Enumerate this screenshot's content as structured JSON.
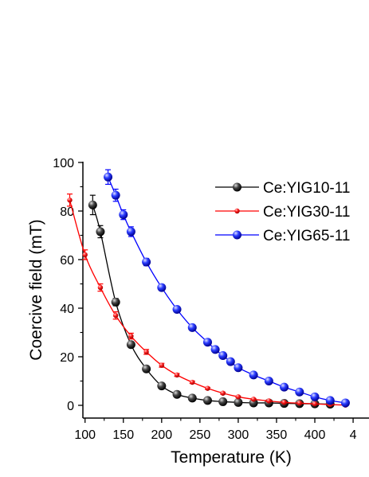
{
  "chart_data": {
    "type": "line",
    "xlabel": "Temperature (K)",
    "ylabel": "Coercive field (mT)",
    "xlim": [
      70,
      440
    ],
    "ylim": [
      -5,
      100
    ],
    "x_ticks": [
      "100",
      "150",
      "200",
      "250",
      "300",
      "350",
      "400",
      "4"
    ],
    "y_ticks": [
      "0",
      "20",
      "40",
      "60",
      "80",
      "100"
    ],
    "grid": false,
    "legend_position": "top-right",
    "series": [
      {
        "name": "Ce:YIG10-11",
        "color": "#000000",
        "marker": "ball",
        "x": [
          110,
          120,
          140,
          160,
          180,
          200,
          220,
          240,
          260,
          280,
          300,
          320,
          340,
          360,
          380,
          400,
          420
        ],
        "y": [
          82.5,
          71.5,
          42.5,
          25,
          15,
          8,
          4.5,
          3,
          2,
          1.5,
          1.2,
          1,
          1,
          0.8,
          0.7,
          0.6,
          0.5
        ],
        "yerr": [
          4,
          2.5,
          1.5,
          1,
          0.8,
          0.6,
          0.5,
          0.5,
          0.4,
          0.4,
          0.4,
          0.4,
          0.4,
          0.4,
          0.4,
          0.4,
          0.4
        ]
      },
      {
        "name": "Ce:YIG30-11",
        "color": "#ff0000",
        "marker": "small-ball",
        "x": [
          80,
          100,
          120,
          140,
          160,
          180,
          200,
          220,
          240,
          260,
          280,
          300,
          320,
          340,
          360,
          380,
          400,
          420,
          440
        ],
        "y": [
          84.5,
          62,
          48.5,
          37,
          28.5,
          22,
          16.5,
          12.5,
          9.5,
          7,
          5,
          3.5,
          2.5,
          1.8,
          1.2,
          0.9,
          0.6,
          0.3,
          0.1
        ],
        "yerr": [
          2.5,
          2,
          1.5,
          1.5,
          1.2,
          1,
          0.8,
          0.6,
          0.5,
          0.4,
          0.4,
          0.3,
          0.3,
          0.3,
          0.3,
          0.3,
          0.3,
          0.3,
          0.3
        ]
      },
      {
        "name": "Ce:YIG65-11",
        "color": "#0000ff",
        "marker": "ball",
        "x": [
          130,
          140,
          150,
          160,
          180,
          200,
          220,
          240,
          260,
          270,
          280,
          290,
          300,
          320,
          340,
          360,
          380,
          400,
          420,
          440
        ],
        "y": [
          94,
          86.5,
          78.5,
          71.5,
          59,
          48.5,
          39.5,
          32,
          26,
          23,
          20.5,
          18,
          15.5,
          12.5,
          10,
          7.5,
          5.5,
          3.5,
          2,
          1
        ],
        "yerr": [
          3,
          2.5,
          2,
          2,
          1.5,
          1.2,
          1,
          0.8,
          0.7,
          0.6,
          0.6,
          0.6,
          0.5,
          0.5,
          0.5,
          0.5,
          0.5,
          0.4,
          0.4,
          0.4
        ]
      }
    ]
  }
}
